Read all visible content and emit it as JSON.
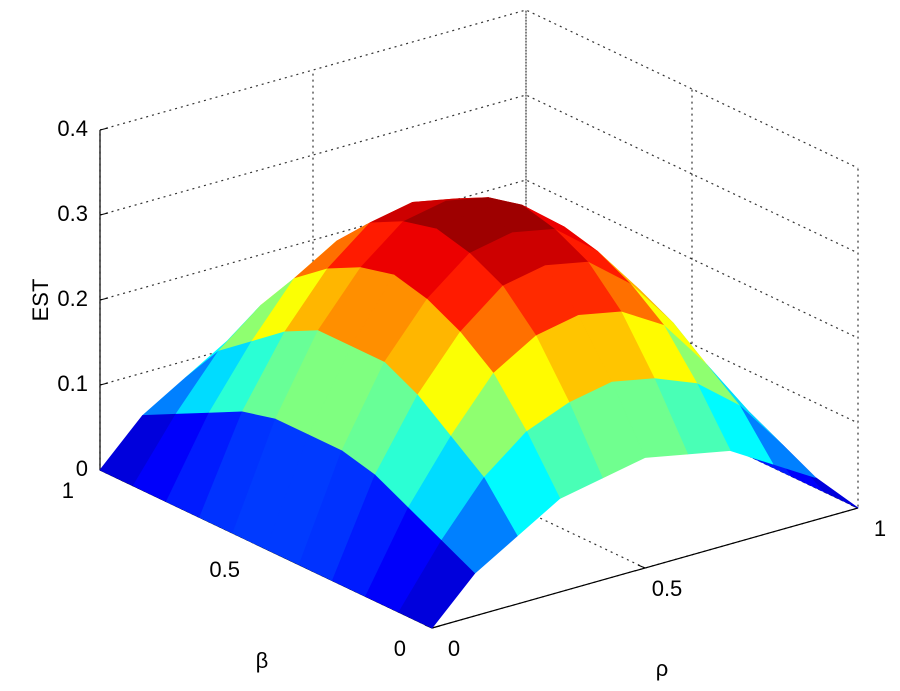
{
  "chart_data": {
    "type": "surface",
    "zlabel": "EST",
    "xlabel": "ρ",
    "ylabel": "β",
    "x": [
      0,
      0.1,
      0.2,
      0.3,
      0.4,
      0.5,
      0.6,
      0.7,
      0.8,
      0.9,
      1
    ],
    "y": [
      0,
      0.1,
      0.2,
      0.3,
      0.4,
      0.5,
      0.6,
      0.7,
      0.8,
      0.9,
      1
    ],
    "z": [
      [
        0,
        0.05,
        0.08,
        0.11,
        0.12,
        0.13,
        0.12,
        0.11,
        0.08,
        0.05,
        0
      ],
      [
        0,
        0.07,
        0.13,
        0.17,
        0.19,
        0.2,
        0.19,
        0.17,
        0.13,
        0.07,
        0
      ],
      [
        0,
        0.09,
        0.16,
        0.22,
        0.25,
        0.26,
        0.25,
        0.22,
        0.16,
        0.09,
        0
      ],
      [
        0,
        0.11,
        0.19,
        0.25,
        0.29,
        0.3,
        0.29,
        0.25,
        0.19,
        0.11,
        0
      ],
      [
        0,
        0.12,
        0.21,
        0.27,
        0.31,
        0.32,
        0.31,
        0.27,
        0.21,
        0.12,
        0
      ],
      [
        0,
        0.12,
        0.21,
        0.28,
        0.32,
        0.33,
        0.32,
        0.28,
        0.21,
        0.12,
        0
      ],
      [
        0,
        0.12,
        0.21,
        0.27,
        0.31,
        0.32,
        0.31,
        0.27,
        0.21,
        0.12,
        0
      ],
      [
        0,
        0.11,
        0.19,
        0.25,
        0.29,
        0.3,
        0.29,
        0.25,
        0.19,
        0.11,
        0
      ],
      [
        0,
        0.09,
        0.16,
        0.22,
        0.25,
        0.26,
        0.25,
        0.22,
        0.16,
        0.09,
        0
      ],
      [
        0,
        0.07,
        0.13,
        0.17,
        0.19,
        0.2,
        0.19,
        0.17,
        0.13,
        0.07,
        0
      ],
      [
        0,
        0.05,
        0.08,
        0.11,
        0.12,
        0.13,
        0.12,
        0.11,
        0.08,
        0.05,
        0
      ]
    ],
    "xlim": [
      0,
      1
    ],
    "ylim": [
      0,
      1
    ],
    "zlim": [
      0,
      0.4
    ],
    "xticks": [
      0,
      0.5,
      1
    ],
    "yticks": [
      0,
      0.5,
      1
    ],
    "zticks": [
      0,
      0.1,
      0.2,
      0.3,
      0.4
    ],
    "colormap": "jet",
    "grid": true
  }
}
